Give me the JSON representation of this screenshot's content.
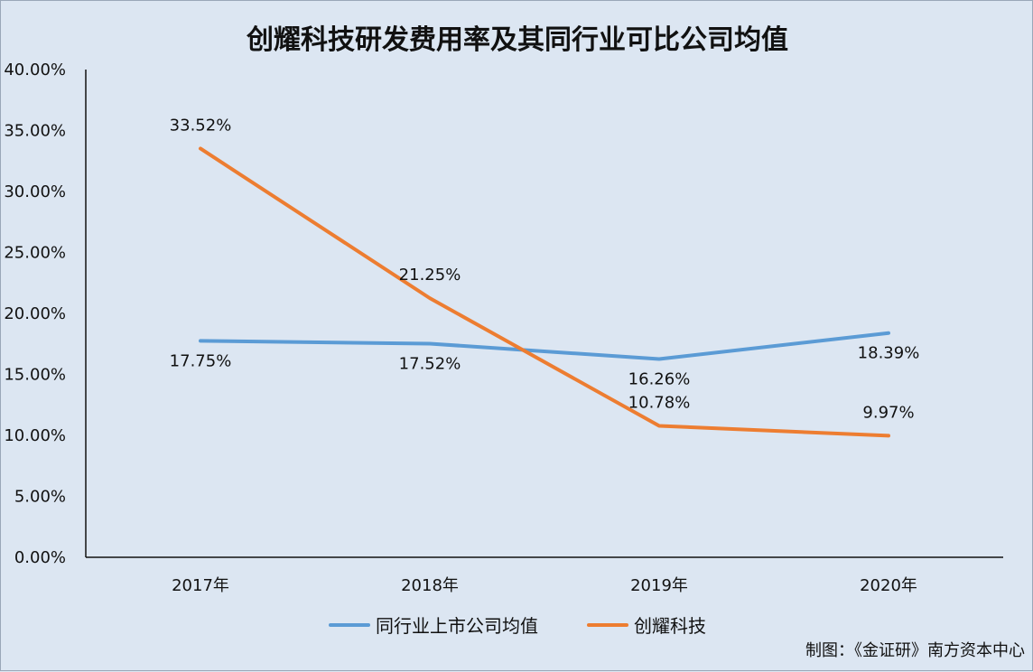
{
  "chart_data": {
    "type": "line",
    "title": "创耀科技研发费用率及其同行业可比公司均值",
    "categories": [
      "2017年",
      "2018年",
      "2019年",
      "2020年"
    ],
    "ylim": [
      0,
      40
    ],
    "ytick_labels": [
      "0.00%",
      "5.00%",
      "10.00%",
      "15.00%",
      "20.00%",
      "25.00%",
      "30.00%",
      "35.00%",
      "40.00%"
    ],
    "ytick_values": [
      0,
      5,
      10,
      15,
      20,
      25,
      30,
      35,
      40
    ],
    "grid": false,
    "legend_position": "bottom",
    "series": [
      {
        "name": "同行业上市公司均值",
        "color": "#5b9bd5",
        "values": [
          17.75,
          17.52,
          16.26,
          18.39
        ],
        "labels": [
          "17.75%",
          "17.52%",
          "16.26%",
          "18.39%"
        ],
        "label_side": [
          "below",
          "below",
          "below",
          "below"
        ]
      },
      {
        "name": "创耀科技",
        "color": "#ed7d31",
        "values": [
          33.52,
          21.25,
          10.78,
          9.97
        ],
        "labels": [
          "33.52%",
          "21.25%",
          "10.78%",
          "9.97%"
        ],
        "label_side": [
          "above",
          "above",
          "above",
          "above"
        ]
      }
    ]
  },
  "source_note": "制图：《金证研》南方资本中心"
}
